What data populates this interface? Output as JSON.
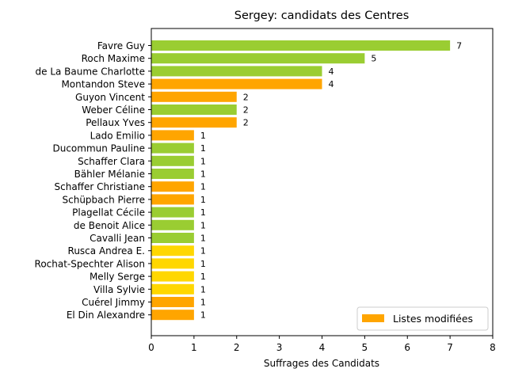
{
  "chart_data": {
    "type": "bar",
    "orientation": "horizontal",
    "title": "Sergey: candidats des Centres",
    "xlabel": "Suffrages des Candidats",
    "ylabel": "",
    "xlim": [
      0,
      8
    ],
    "x_ticks": [
      "0",
      "1",
      "2",
      "3",
      "4",
      "5",
      "6",
      "7",
      "8"
    ],
    "grid": false,
    "legend": {
      "placement": "lower-right",
      "entries": [
        {
          "label": "Listes modifiées",
          "color": "#ffa500"
        }
      ]
    },
    "categories": [
      "Favre Guy",
      "Roch Maxime",
      "de La Baume Charlotte",
      "Montandon Steve",
      "Guyon Vincent",
      "Weber Céline",
      "Pellaux Yves",
      "Lado Emilio",
      "Ducommun Pauline",
      "Schaffer Clara",
      "Bähler Mélanie",
      "Schaffer Christiane",
      "Schüpbach Pierre",
      "Plagellat Cécile",
      "de Benoit Alice",
      "Cavalli Jean",
      "Rusca Andrea E.",
      "Rochat-Spechter Alison",
      "Melly Serge",
      "Villa Sylvie",
      "Cuérel Jimmy",
      "El Din Alexandre"
    ],
    "values": [
      7,
      5,
      4,
      4,
      2,
      2,
      2,
      1,
      1,
      1,
      1,
      1,
      1,
      1,
      1,
      1,
      1,
      1,
      1,
      1,
      1,
      1
    ],
    "value_labels": [
      "7",
      "5",
      "4",
      "4",
      "2",
      "2",
      "2",
      "1",
      "1",
      "1",
      "1",
      "1",
      "1",
      "1",
      "1",
      "1",
      "1",
      "1",
      "1",
      "1",
      "1",
      "1"
    ],
    "colors": [
      "#9acd32",
      "#9acd32",
      "#9acd32",
      "#ffa500",
      "#ffa500",
      "#9acd32",
      "#ffa500",
      "#ffa500",
      "#9acd32",
      "#9acd32",
      "#9acd32",
      "#ffa500",
      "#ffa500",
      "#9acd32",
      "#9acd32",
      "#9acd32",
      "#ffd700",
      "#ffd700",
      "#ffd700",
      "#ffd700",
      "#ffa500",
      "#ffa500"
    ]
  }
}
